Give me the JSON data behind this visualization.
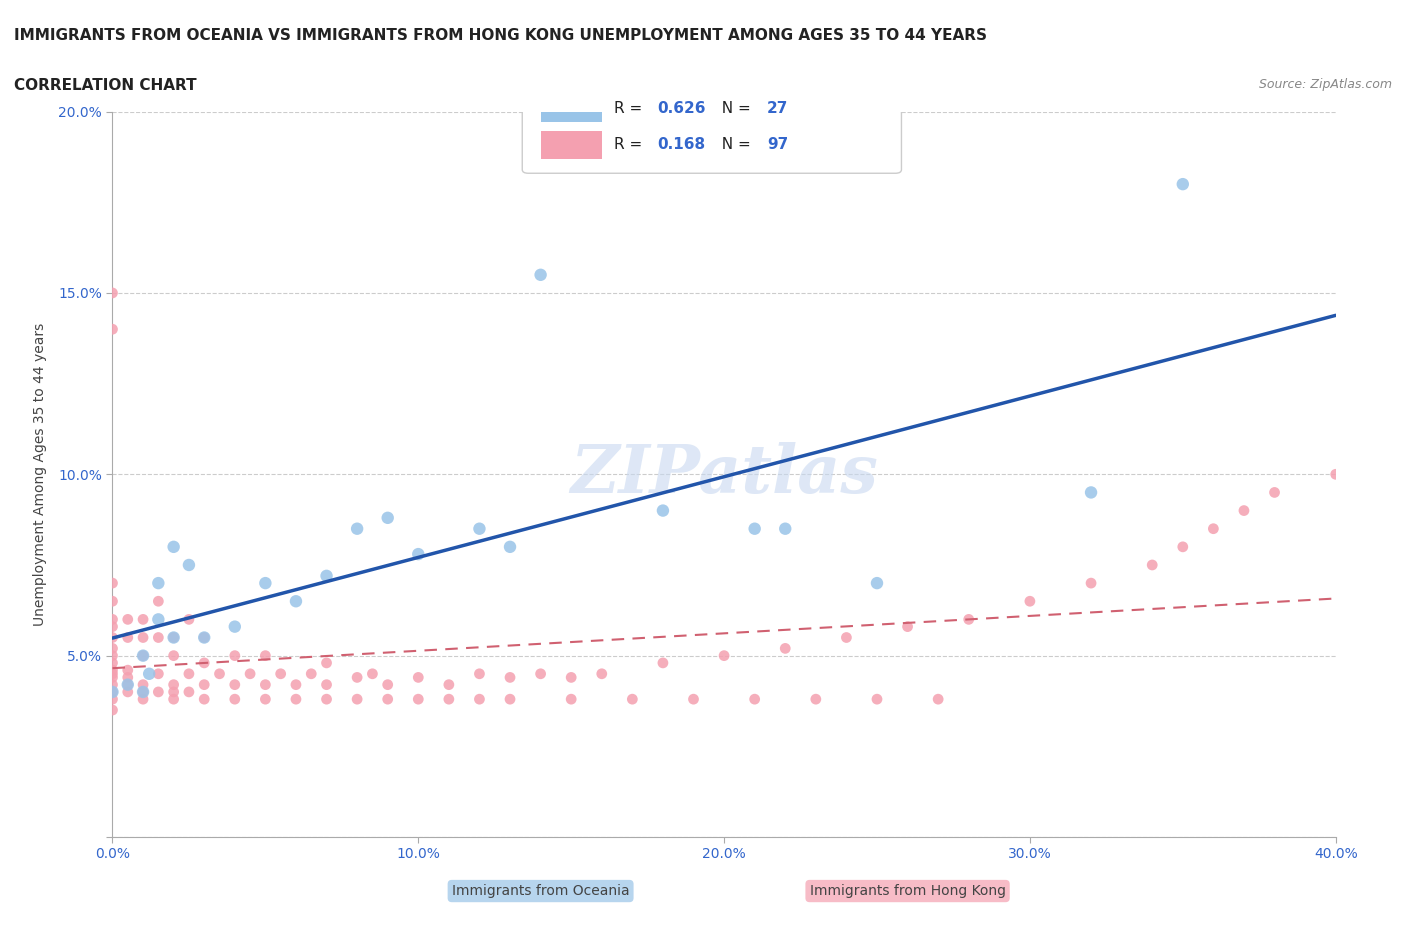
{
  "title_line1": "IMMIGRANTS FROM OCEANIA VS IMMIGRANTS FROM HONG KONG UNEMPLOYMENT AMONG AGES 35 TO 44 YEARS",
  "title_line2": "CORRELATION CHART",
  "source_text": "Source: ZipAtlas.com",
  "xlabel": "",
  "ylabel": "Unemployment Among Ages 35 to 44 years",
  "xlim": [
    0.0,
    0.4
  ],
  "ylim": [
    0.0,
    0.2
  ],
  "xticks": [
    0.0,
    0.1,
    0.2,
    0.3,
    0.4
  ],
  "yticks": [
    0.0,
    0.05,
    0.1,
    0.15,
    0.2
  ],
  "xticklabels": [
    "0.0%",
    "10.0%",
    "20.0%",
    "30.0%",
    "40.0%"
  ],
  "yticklabels": [
    "",
    "5.0%",
    "10.0%",
    "15.0%",
    "20.0%"
  ],
  "R_oceania": 0.626,
  "N_oceania": 27,
  "R_hongkong": 0.168,
  "N_hongkong": 97,
  "color_oceania": "#99c4e8",
  "color_hongkong": "#f4a0b0",
  "trendline_oceania_color": "#2255aa",
  "trendline_hongkong_color": "#d06070",
  "watermark": "ZIPatlas",
  "watermark_color": "#c8d8f0",
  "background_color": "#ffffff",
  "oceania_x": [
    0.0,
    0.005,
    0.01,
    0.01,
    0.012,
    0.015,
    0.015,
    0.02,
    0.02,
    0.025,
    0.03,
    0.04,
    0.05,
    0.06,
    0.07,
    0.08,
    0.09,
    0.1,
    0.12,
    0.13,
    0.14,
    0.18,
    0.21,
    0.22,
    0.25,
    0.32,
    0.35
  ],
  "oceania_y": [
    0.04,
    0.042,
    0.04,
    0.05,
    0.045,
    0.06,
    0.07,
    0.055,
    0.08,
    0.075,
    0.055,
    0.058,
    0.07,
    0.065,
    0.072,
    0.085,
    0.088,
    0.078,
    0.085,
    0.08,
    0.155,
    0.09,
    0.085,
    0.085,
    0.07,
    0.095,
    0.18
  ],
  "hongkong_x": [
    0.0,
    0.0,
    0.0,
    0.0,
    0.0,
    0.0,
    0.0,
    0.0,
    0.0,
    0.0,
    0.0,
    0.0,
    0.0,
    0.0,
    0.0,
    0.005,
    0.005,
    0.005,
    0.005,
    0.005,
    0.005,
    0.01,
    0.01,
    0.01,
    0.01,
    0.01,
    0.015,
    0.015,
    0.015,
    0.015,
    0.02,
    0.02,
    0.02,
    0.02,
    0.025,
    0.025,
    0.025,
    0.03,
    0.03,
    0.03,
    0.035,
    0.04,
    0.04,
    0.045,
    0.05,
    0.05,
    0.055,
    0.06,
    0.065,
    0.07,
    0.07,
    0.08,
    0.085,
    0.09,
    0.1,
    0.11,
    0.12,
    0.13,
    0.14,
    0.15,
    0.16,
    0.18,
    0.2,
    0.22,
    0.24,
    0.26,
    0.28,
    0.3,
    0.32,
    0.34,
    0.35,
    0.36,
    0.37,
    0.38,
    0.4,
    0.0,
    0.0,
    0.01,
    0.02,
    0.03,
    0.04,
    0.05,
    0.06,
    0.07,
    0.08,
    0.09,
    0.1,
    0.11,
    0.12,
    0.13,
    0.15,
    0.17,
    0.19,
    0.21,
    0.23,
    0.25,
    0.27
  ],
  "hongkong_y": [
    0.04,
    0.042,
    0.044,
    0.035,
    0.038,
    0.045,
    0.046,
    0.048,
    0.05,
    0.052,
    0.055,
    0.058,
    0.06,
    0.065,
    0.07,
    0.04,
    0.042,
    0.044,
    0.046,
    0.055,
    0.06,
    0.04,
    0.042,
    0.05,
    0.055,
    0.06,
    0.04,
    0.045,
    0.055,
    0.065,
    0.04,
    0.042,
    0.05,
    0.055,
    0.04,
    0.045,
    0.06,
    0.042,
    0.048,
    0.055,
    0.045,
    0.042,
    0.05,
    0.045,
    0.042,
    0.05,
    0.045,
    0.042,
    0.045,
    0.042,
    0.048,
    0.044,
    0.045,
    0.042,
    0.044,
    0.042,
    0.045,
    0.044,
    0.045,
    0.044,
    0.045,
    0.048,
    0.05,
    0.052,
    0.055,
    0.058,
    0.06,
    0.065,
    0.07,
    0.075,
    0.08,
    0.085,
    0.09,
    0.095,
    0.1,
    0.14,
    0.15,
    0.038,
    0.038,
    0.038,
    0.038,
    0.038,
    0.038,
    0.038,
    0.038,
    0.038,
    0.038,
    0.038,
    0.038,
    0.038,
    0.038,
    0.038,
    0.038,
    0.038,
    0.038,
    0.038,
    0.038
  ]
}
